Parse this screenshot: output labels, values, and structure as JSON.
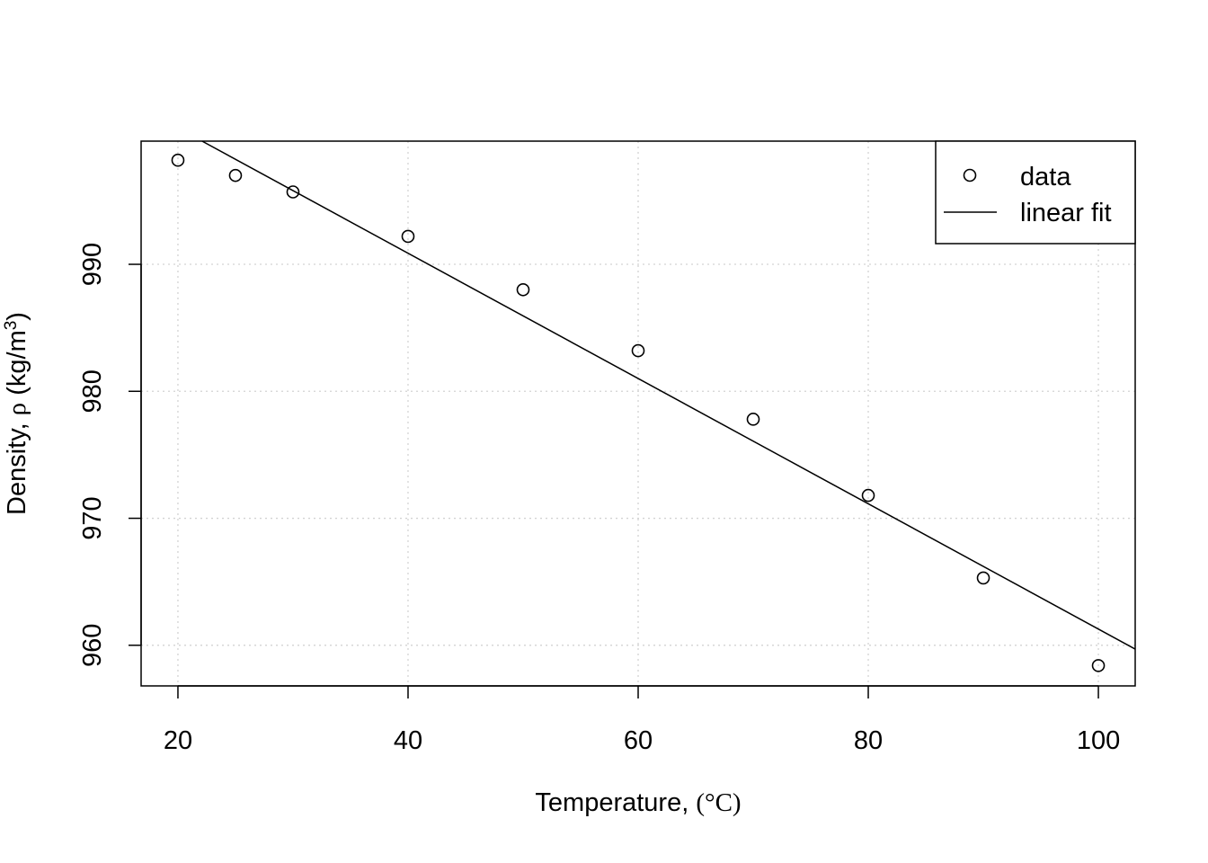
{
  "chart_data": {
    "type": "scatter",
    "title": "",
    "xlabel": "Temperature, (°C)",
    "xlabel_prefix": "Temperature, ",
    "xlabel_unit": "(°C)",
    "ylabel": "Density, ρ (kg/m³)",
    "ylabel_prefix": "Density, ",
    "ylabel_symbol": "ρ",
    "ylabel_unit_open": " (kg/m",
    "ylabel_unit_sup": "3",
    "ylabel_unit_close": ")",
    "xlim": [
      16.8,
      103.2
    ],
    "ylim": [
      956.8,
      999.7
    ],
    "x_ticks": [
      20,
      40,
      60,
      80,
      100
    ],
    "y_ticks": [
      960,
      970,
      980,
      990
    ],
    "grid": true,
    "legend_position": "top-right",
    "series": [
      {
        "name": "data",
        "kind": "points",
        "x": [
          20,
          25,
          30,
          40,
          50,
          60,
          70,
          80,
          90,
          100
        ],
        "y": [
          998.2,
          997.0,
          995.7,
          992.2,
          988.0,
          983.2,
          977.8,
          971.8,
          965.3,
          958.4
        ]
      },
      {
        "name": "linear fit",
        "kind": "line",
        "x": [
          22.1,
          103.2
        ],
        "y": [
          999.7,
          959.7
        ]
      }
    ]
  }
}
